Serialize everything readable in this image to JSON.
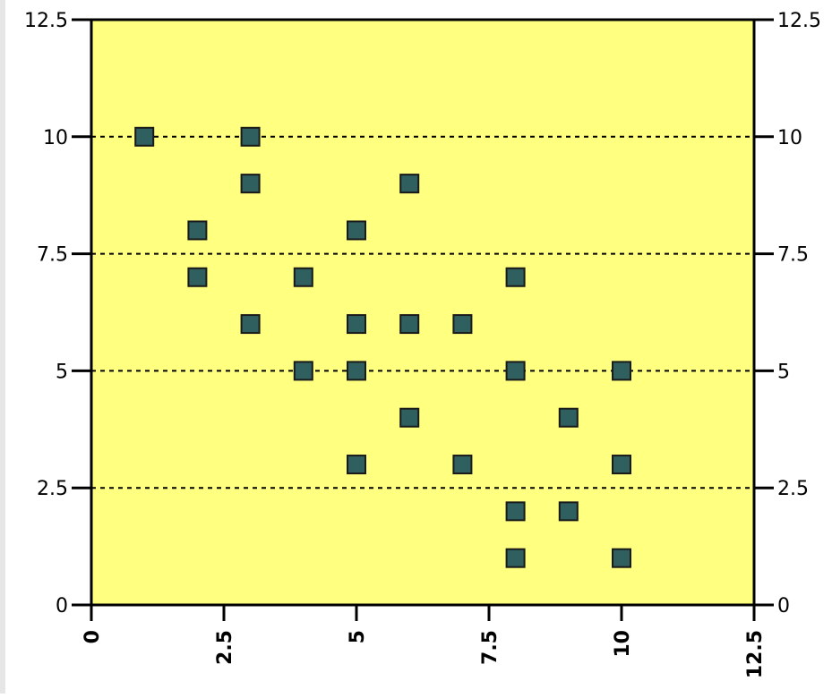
{
  "chart_data": {
    "type": "scatter",
    "title": "",
    "xlabel": "",
    "ylabel": "",
    "xlim": [
      0,
      12.5
    ],
    "ylim": [
      0,
      12.5
    ],
    "x_ticks": [
      "0",
      "2.5",
      "5",
      "7.5",
      "10",
      "12.5"
    ],
    "y_ticks": [
      "0",
      "2.5",
      "5",
      "7.5",
      "10",
      "12.5"
    ],
    "grid": "horizontal dashed at 2.5, 5, 7.5, 10",
    "plot_background": "#ffff80",
    "marker_color": "#2f5f5f",
    "points": [
      {
        "x": 1,
        "y": 10
      },
      {
        "x": 3,
        "y": 10
      },
      {
        "x": 3,
        "y": 9
      },
      {
        "x": 6,
        "y": 9
      },
      {
        "x": 2,
        "y": 8
      },
      {
        "x": 5,
        "y": 8
      },
      {
        "x": 2,
        "y": 7
      },
      {
        "x": 4,
        "y": 7
      },
      {
        "x": 8,
        "y": 7
      },
      {
        "x": 3,
        "y": 6
      },
      {
        "x": 5,
        "y": 6
      },
      {
        "x": 6,
        "y": 6
      },
      {
        "x": 7,
        "y": 6
      },
      {
        "x": 4,
        "y": 5
      },
      {
        "x": 5,
        "y": 5
      },
      {
        "x": 8,
        "y": 5
      },
      {
        "x": 10,
        "y": 5
      },
      {
        "x": 6,
        "y": 4
      },
      {
        "x": 9,
        "y": 4
      },
      {
        "x": 5,
        "y": 3
      },
      {
        "x": 7,
        "y": 3
      },
      {
        "x": 10,
        "y": 3
      },
      {
        "x": 8,
        "y": 2
      },
      {
        "x": 9,
        "y": 2
      },
      {
        "x": 8,
        "y": 1
      },
      {
        "x": 10,
        "y": 1
      }
    ]
  }
}
